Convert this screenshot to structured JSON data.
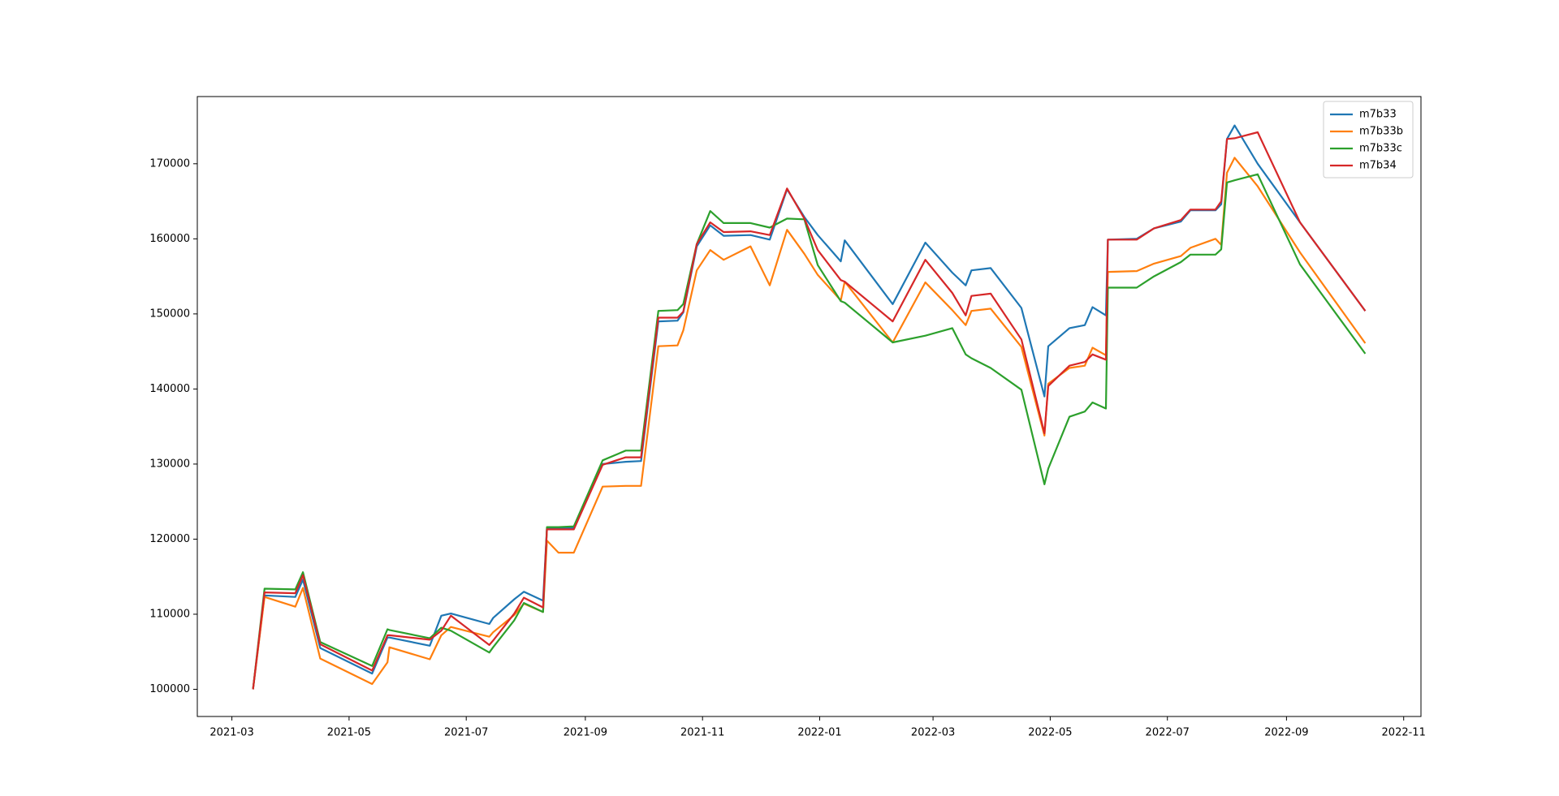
{
  "chart_data": {
    "type": "line",
    "x": [
      "2021-03-12",
      "2021-03-18",
      "2021-04-03",
      "2021-04-07",
      "2021-04-16",
      "2021-05-13",
      "2021-05-21",
      "2021-05-22",
      "2021-06-12",
      "2021-06-18",
      "2021-06-23",
      "2021-07-13",
      "2021-07-15",
      "2021-07-26",
      "2021-07-31",
      "2021-08-10",
      "2021-08-12",
      "2021-08-18",
      "2021-08-26",
      "2021-09-10",
      "2021-09-22",
      "2021-09-30",
      "2021-10-09",
      "2021-10-19",
      "2021-10-22",
      "2021-10-29",
      "2021-11-05",
      "2021-11-12",
      "2021-11-26",
      "2021-12-06",
      "2021-12-15",
      "2021-12-24",
      "2021-12-31",
      "2022-01-12",
      "2022-01-14",
      "2022-02-08",
      "2022-02-25",
      "2022-03-11",
      "2022-03-18",
      "2022-03-21",
      "2022-03-31",
      "2022-04-16",
      "2022-04-28",
      "2022-04-30",
      "2022-05-11",
      "2022-05-19",
      "2022-05-23",
      "2022-05-30",
      "2022-05-31",
      "2022-06-15",
      "2022-06-24",
      "2022-07-08",
      "2022-07-13",
      "2022-07-26",
      "2022-07-29",
      "2022-08-01",
      "2022-08-05",
      "2022-08-17",
      "2022-09-08",
      "2022-10-12"
    ],
    "series": [
      {
        "name": "m7b33",
        "color": "#1f77b4",
        "values": [
          100000,
          112500,
          112300,
          114600,
          105500,
          102100,
          106900,
          106900,
          105800,
          109800,
          110100,
          108700,
          109500,
          112000,
          113000,
          111800,
          121500,
          121500,
          121500,
          130000,
          130300,
          130400,
          149000,
          149100,
          150200,
          159000,
          161800,
          160400,
          160500,
          159900,
          166600,
          162900,
          160500,
          157000,
          159800,
          151300,
          159500,
          155500,
          153800,
          155800,
          156100,
          150800,
          139000,
          145700,
          148100,
          148500,
          150900,
          149800,
          159900,
          160000,
          161400,
          162300,
          163800,
          163800,
          164600,
          173300,
          175100,
          170000,
          162200,
          150400
        ]
      },
      {
        "name": "m7b33b",
        "color": "#ff7f0e",
        "values": [
          100000,
          112300,
          111000,
          113500,
          104100,
          100700,
          103600,
          105600,
          104000,
          107200,
          108300,
          107000,
          107600,
          109900,
          111400,
          110300,
          119800,
          118200,
          118200,
          127000,
          127100,
          127100,
          145700,
          145800,
          147800,
          155800,
          158500,
          157200,
          159000,
          153800,
          161200,
          158000,
          155200,
          151800,
          154300,
          146200,
          154200,
          150500,
          148500,
          150400,
          150700,
          145600,
          133800,
          140700,
          142800,
          143100,
          145500,
          144500,
          155600,
          155700,
          156700,
          157700,
          158800,
          160000,
          159200,
          168800,
          170800,
          167000,
          158200,
          146100
        ]
      },
      {
        "name": "m7b33c",
        "color": "#2ca02c",
        "values": [
          100000,
          113400,
          113300,
          115600,
          106300,
          103100,
          108000,
          107900,
          106800,
          108200,
          107800,
          104900,
          105600,
          109200,
          111500,
          110300,
          121600,
          121600,
          121700,
          130500,
          131800,
          131800,
          150400,
          150500,
          151300,
          159300,
          163700,
          162100,
          162100,
          161500,
          162700,
          162600,
          156500,
          151700,
          151500,
          146200,
          147100,
          148100,
          144600,
          144100,
          142800,
          139900,
          127300,
          129400,
          136300,
          137000,
          138200,
          137400,
          153500,
          153500,
          155000,
          156900,
          157900,
          157900,
          158600,
          167500,
          167800,
          168600,
          156600,
          144700
        ]
      },
      {
        "name": "m7b34",
        "color": "#d62728",
        "values": [
          100000,
          112900,
          112800,
          115200,
          106000,
          102500,
          107200,
          107200,
          106600,
          107800,
          109800,
          105900,
          106500,
          110100,
          112200,
          110900,
          121300,
          121300,
          121300,
          129900,
          130900,
          130900,
          149500,
          149500,
          150300,
          159300,
          162200,
          160900,
          161000,
          160500,
          166700,
          162700,
          158500,
          154500,
          154300,
          149000,
          157200,
          152800,
          149800,
          152400,
          152700,
          146600,
          134100,
          140400,
          143100,
          143600,
          144600,
          143900,
          159900,
          159900,
          161400,
          162500,
          163900,
          163900,
          165000,
          173300,
          173400,
          174200,
          162200,
          150400
        ]
      }
    ],
    "xlim": [
      "2021-02-11",
      "2022-11-10"
    ],
    "xticks": [
      "2021-03",
      "2021-05",
      "2021-07",
      "2021-09",
      "2021-11",
      "2022-01",
      "2022-03",
      "2022-05",
      "2022-07",
      "2022-09",
      "2022-11"
    ],
    "ylim": [
      96380,
      178950
    ],
    "yticks": [
      100000,
      110000,
      120000,
      130000,
      140000,
      150000,
      160000,
      170000
    ],
    "legend": "upper right"
  }
}
